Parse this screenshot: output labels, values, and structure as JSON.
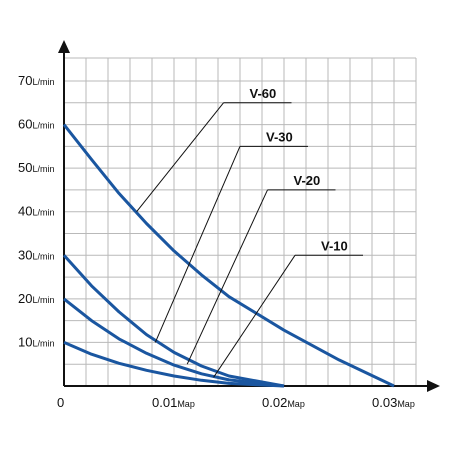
{
  "chart_data": {
    "type": "line",
    "title": "",
    "xlabel": "",
    "ylabel": "",
    "xlim": [
      0,
      0.03
    ],
    "ylim": [
      0,
      70
    ],
    "x_ticks": [
      {
        "value": 0,
        "label": "0",
        "unit": ""
      },
      {
        "value": 0.01,
        "label": "0.01",
        "unit": "Map"
      },
      {
        "value": 0.02,
        "label": "0.02",
        "unit": "Map"
      },
      {
        "value": 0.03,
        "label": "0.03",
        "unit": "Map"
      }
    ],
    "y_ticks": [
      {
        "value": 10,
        "label": "10",
        "unit": "L/min"
      },
      {
        "value": 20,
        "label": "20",
        "unit": "L/min"
      },
      {
        "value": 30,
        "label": "30",
        "unit": "L/min"
      },
      {
        "value": 40,
        "label": "40",
        "unit": "L/min"
      },
      {
        "value": 50,
        "label": "50",
        "unit": "L/min"
      },
      {
        "value": 60,
        "label": "60",
        "unit": "L/min"
      },
      {
        "value": 70,
        "label": "70",
        "unit": "L/min"
      }
    ],
    "grid": true,
    "series_color": "#1a56a0",
    "series": [
      {
        "name": "V-60",
        "x": [
          0,
          0.0025,
          0.005,
          0.0075,
          0.01,
          0.0125,
          0.015,
          0.02,
          0.025,
          0.03
        ],
        "y": [
          60,
          52,
          44.2,
          37.3,
          31,
          25.5,
          20.5,
          12.8,
          6,
          0
        ],
        "callout_point": [
          0.0066,
          40
        ],
        "label_anchor": [
          0.0145,
          65
        ]
      },
      {
        "name": "V-30",
        "x": [
          0,
          0.0025,
          0.005,
          0.0075,
          0.01,
          0.0125,
          0.015,
          0.02
        ],
        "y": [
          30,
          23,
          17,
          11.8,
          7.7,
          4.6,
          2.3,
          0
        ],
        "callout_point": [
          0.0083,
          10
        ],
        "label_anchor": [
          0.016,
          55
        ]
      },
      {
        "name": "V-20",
        "x": [
          0,
          0.0025,
          0.005,
          0.0075,
          0.01,
          0.0125,
          0.015,
          0.02
        ],
        "y": [
          20,
          15,
          10.8,
          7.5,
          4.8,
          2.8,
          1.4,
          0
        ],
        "callout_point": [
          0.0112,
          5
        ],
        "label_anchor": [
          0.0185,
          45
        ]
      },
      {
        "name": "V-10",
        "x": [
          0,
          0.0025,
          0.005,
          0.0075,
          0.01,
          0.0125,
          0.015,
          0.02
        ],
        "y": [
          10,
          7.3,
          5.2,
          3.6,
          2.3,
          1.3,
          0.6,
          0
        ],
        "callout_point": [
          0.0136,
          2
        ],
        "label_anchor": [
          0.021,
          30
        ]
      }
    ]
  }
}
